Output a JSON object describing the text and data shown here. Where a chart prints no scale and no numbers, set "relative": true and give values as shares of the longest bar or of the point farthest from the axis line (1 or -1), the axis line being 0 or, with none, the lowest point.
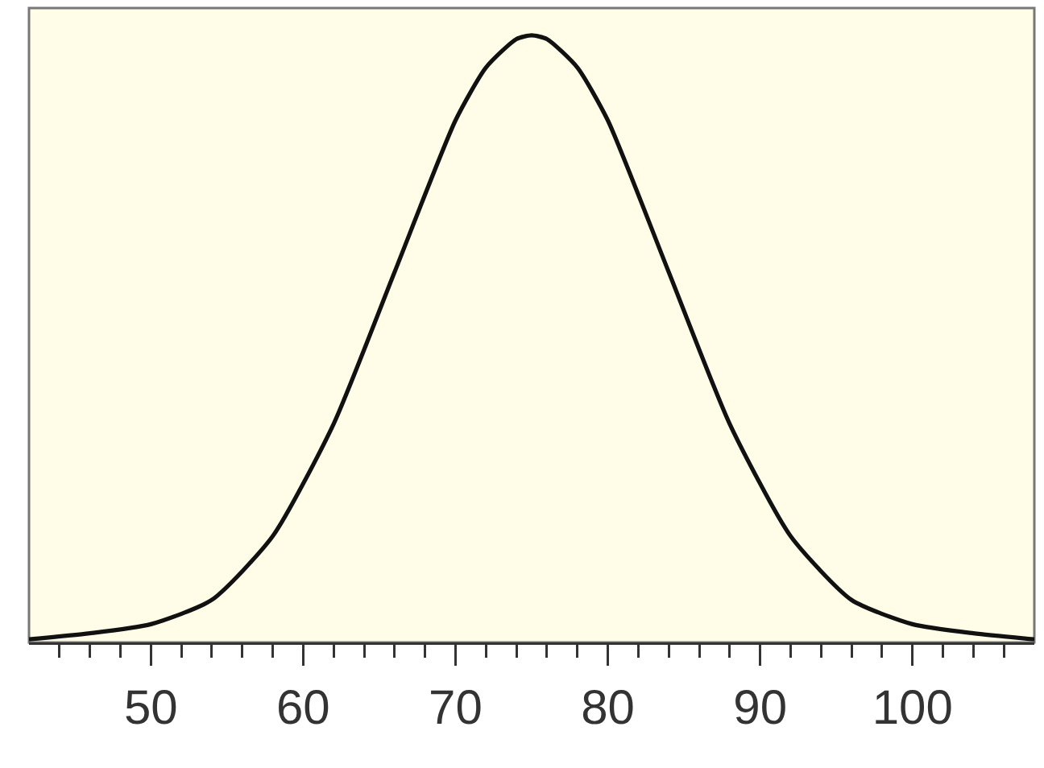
{
  "chart_data": {
    "type": "line",
    "relative": true,
    "x": [
      42,
      46,
      50,
      54,
      58,
      62,
      66,
      70,
      72,
      74,
      75,
      76,
      78,
      80,
      84,
      88,
      92,
      96,
      100,
      104,
      108
    ],
    "series": [
      {
        "color": "#111111",
        "values": [
          0.005,
          0.015,
          0.03,
          0.07,
          0.175,
          0.36,
          0.61,
          0.86,
          0.947,
          0.994,
          1,
          0.994,
          0.947,
          0.86,
          0.61,
          0.36,
          0.175,
          0.07,
          0.03,
          0.015,
          0.005
        ]
      }
    ],
    "xlim": [
      42,
      108
    ],
    "xticks": [
      {
        "value": 44,
        "label": null
      },
      {
        "value": 46,
        "label": null
      },
      {
        "value": 48,
        "label": null
      },
      50,
      {
        "value": 52,
        "label": null
      },
      {
        "value": 54,
        "label": null
      },
      {
        "value": 56,
        "label": null
      },
      {
        "value": 58,
        "label": null
      },
      60,
      {
        "value": 62,
        "label": null
      },
      {
        "value": 64,
        "label": null
      },
      {
        "value": 66,
        "label": null
      },
      {
        "value": 68,
        "label": null
      },
      70,
      {
        "value": 72,
        "label": null
      },
      {
        "value": 74,
        "label": null
      },
      {
        "value": 76,
        "label": null
      },
      {
        "value": 78,
        "label": null
      },
      80,
      {
        "value": 82,
        "label": null
      },
      {
        "value": 84,
        "label": null
      },
      {
        "value": 86,
        "label": null
      },
      {
        "value": 88,
        "label": null
      },
      90,
      {
        "value": 92,
        "label": null
      },
      {
        "value": 94,
        "label": null
      },
      {
        "value": 96,
        "label": null
      },
      {
        "value": 98,
        "label": null
      },
      100,
      {
        "value": 102,
        "label": null
      },
      {
        "value": 104,
        "label": null
      },
      {
        "value": 106,
        "label": null
      }
    ],
    "grid": false,
    "legend": false,
    "marker": "none",
    "line_style": "solid"
  }
}
